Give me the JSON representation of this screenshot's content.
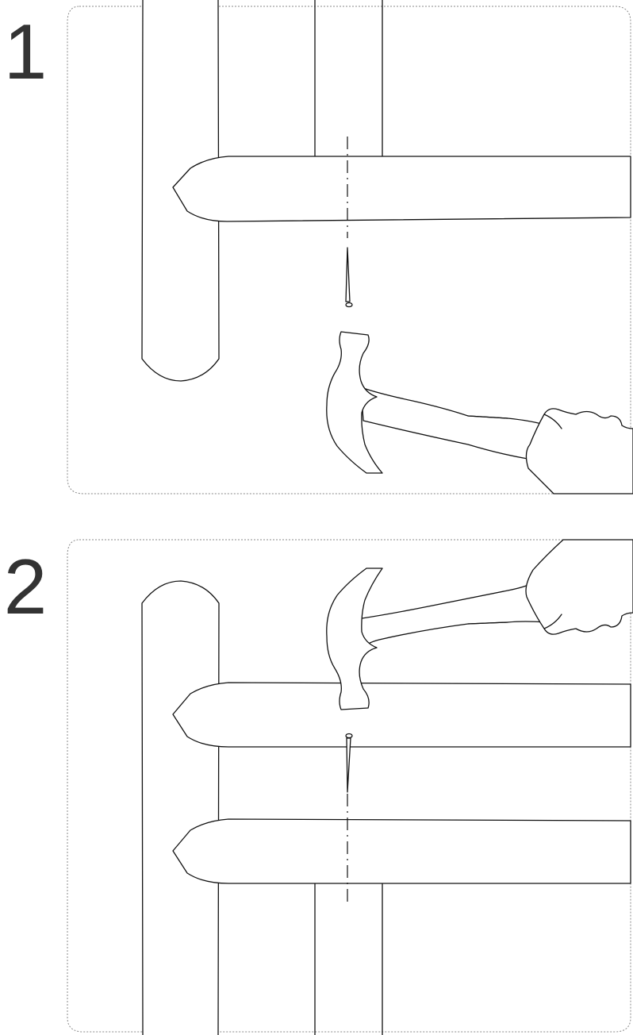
{
  "steps": [
    {
      "number": "1"
    },
    {
      "number": "2"
    }
  ]
}
